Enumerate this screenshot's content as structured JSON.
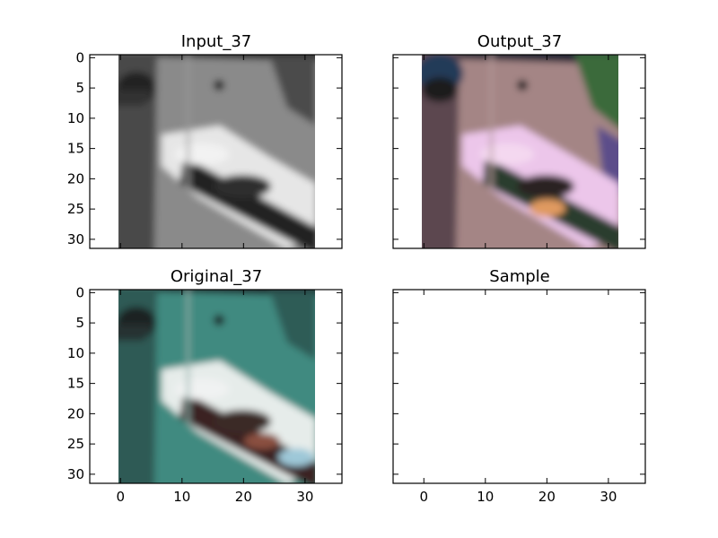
{
  "figure": {
    "background": "#ffffff",
    "panels": [
      {
        "title": "Input_37",
        "show_xticks": false,
        "show_yticks": true,
        "image": "grayscale-boat"
      },
      {
        "title": "Output_37",
        "show_xticks": false,
        "show_yticks": false,
        "image": "colorized-boat-output"
      },
      {
        "title": "Original_37",
        "show_xticks": true,
        "show_yticks": true,
        "image": "original-color-boat"
      },
      {
        "title": "Sample",
        "show_xticks": true,
        "show_yticks": false,
        "image": "empty"
      }
    ]
  },
  "chart_data": [
    {
      "type": "image",
      "title": "Input_37",
      "xlim": [
        -5,
        36
      ],
      "ylim": [
        31.5,
        -0.5
      ],
      "xticks": [
        0,
        10,
        20,
        30
      ],
      "yticks": [
        0,
        5,
        10,
        15,
        20,
        25,
        30
      ],
      "image_extent": {
        "x": [
          -0.5,
          31.5
        ],
        "y": [
          -0.5,
          31.5
        ]
      },
      "colormap": "gray"
    },
    {
      "type": "image",
      "title": "Output_37",
      "xlim": [
        -5,
        36
      ],
      "ylim": [
        31.5,
        -0.5
      ],
      "xticks": [
        0,
        10,
        20,
        30
      ],
      "yticks": [
        0,
        5,
        10,
        15,
        20,
        25,
        30
      ],
      "image_extent": {
        "x": [
          -0.5,
          31.5
        ],
        "y": [
          -0.5,
          31.5
        ]
      },
      "colormap": "rgb"
    },
    {
      "type": "image",
      "title": "Original_37",
      "xlim": [
        -5,
        36
      ],
      "ylim": [
        31.5,
        -0.5
      ],
      "xticks": [
        0,
        10,
        20,
        30
      ],
      "yticks": [
        0,
        5,
        10,
        15,
        20,
        25,
        30
      ],
      "image_extent": {
        "x": [
          -0.5,
          31.5
        ],
        "y": [
          -0.5,
          31.5
        ]
      },
      "colormap": "rgb"
    },
    {
      "type": "image",
      "title": "Sample",
      "xlim": [
        -5,
        36
      ],
      "ylim": [
        31.5,
        -0.5
      ],
      "xticks": [
        0,
        10,
        20,
        30
      ],
      "yticks": [
        0,
        5,
        10,
        15,
        20,
        25,
        30
      ],
      "image_extent": null,
      "colormap": null
    }
  ]
}
